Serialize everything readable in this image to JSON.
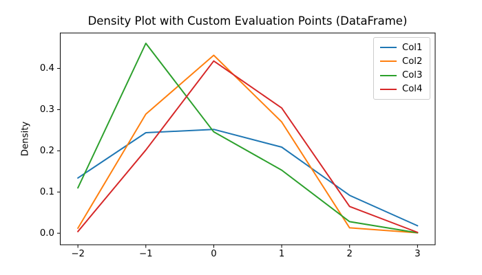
{
  "figure": {
    "background": "#ffffff",
    "title": "Density Plot with Custom Evaluation Points (DataFrame)"
  },
  "chart_data": {
    "type": "line",
    "title": "Density Plot with Custom Evaluation Points (DataFrame)",
    "xlabel": "",
    "ylabel": "Density",
    "x": [
      -2,
      -1,
      0,
      1,
      2,
      3
    ],
    "series": [
      {
        "name": "Col1",
        "color": "#1f77b4",
        "values": [
          0.134,
          0.244,
          0.252,
          0.209,
          0.092,
          0.018
        ]
      },
      {
        "name": "Col2",
        "color": "#ff7f0e",
        "values": [
          0.012,
          0.289,
          0.432,
          0.27,
          0.013,
          0.001
        ]
      },
      {
        "name": "Col3",
        "color": "#2ca02c",
        "values": [
          0.11,
          0.461,
          0.246,
          0.153,
          0.028,
          0.001
        ]
      },
      {
        "name": "Col4",
        "color": "#d62728",
        "values": [
          0.004,
          0.202,
          0.418,
          0.304,
          0.065,
          0.002
        ]
      }
    ],
    "x_ticks": [
      {
        "value": -2,
        "label": "−2"
      },
      {
        "value": -1,
        "label": "−1"
      },
      {
        "value": 0,
        "label": "0"
      },
      {
        "value": 1,
        "label": "1"
      },
      {
        "value": 2,
        "label": "2"
      },
      {
        "value": 3,
        "label": "3"
      }
    ],
    "y_ticks": [
      {
        "value": 0.0,
        "label": "0.0"
      },
      {
        "value": 0.1,
        "label": "0.1"
      },
      {
        "value": 0.2,
        "label": "0.2"
      },
      {
        "value": 0.3,
        "label": "0.3"
      },
      {
        "value": 0.4,
        "label": "0.4"
      }
    ],
    "xlim": [
      -2.26,
      3.26
    ],
    "ylim": [
      -0.028,
      0.486
    ],
    "grid": false,
    "legend": {
      "position": "upper right",
      "entries": [
        "Col1",
        "Col2",
        "Col3",
        "Col4"
      ]
    },
    "spine_color": "#000000",
    "line_width": 2
  }
}
